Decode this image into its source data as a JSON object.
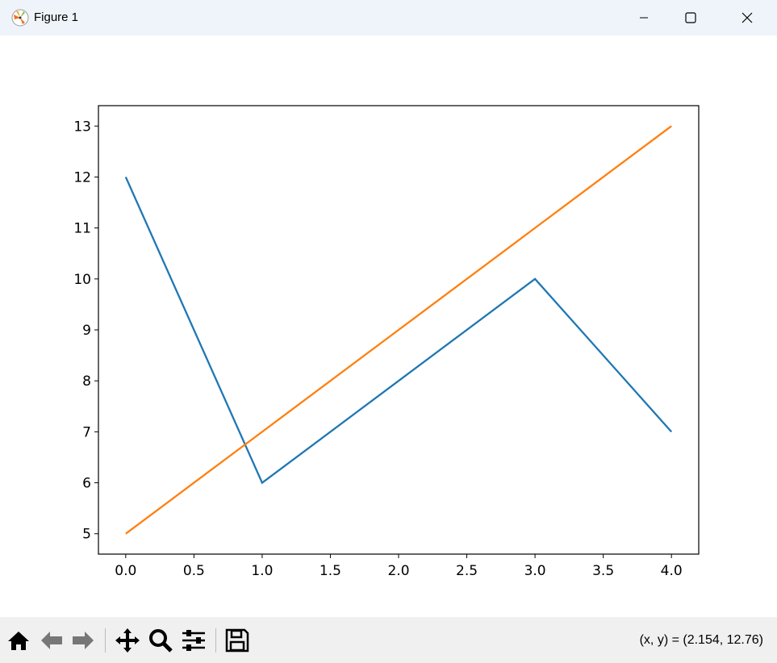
{
  "window": {
    "title": "Figure 1",
    "icon": "matplotlib-logo-icon",
    "controls": [
      "minimize-icon",
      "maximize-icon",
      "close-icon"
    ]
  },
  "toolbar": {
    "buttons": [
      "home-icon",
      "back-arrow-icon",
      "forward-arrow-icon",
      "pan-move-icon",
      "zoom-magnifier-icon",
      "configure-subplots-icon",
      "save-floppy-icon"
    ],
    "coords": "(x, y) = (2.154, 12.76)"
  },
  "chart_data": {
    "type": "line",
    "x": [
      0,
      1,
      2,
      3,
      4
    ],
    "series": [
      {
        "values": [
          12,
          6,
          8,
          10,
          7
        ],
        "color": "#1f77b4"
      },
      {
        "values": [
          5,
          7,
          9,
          11,
          13
        ],
        "color": "#ff7f0e"
      }
    ],
    "xlim": [
      -0.2,
      4.2
    ],
    "ylim": [
      4.6,
      13.4
    ],
    "xticks": [
      "0.0",
      "0.5",
      "1.0",
      "1.5",
      "2.0",
      "2.5",
      "3.0",
      "3.5",
      "4.0"
    ],
    "yticks": [
      "5",
      "6",
      "7",
      "8",
      "9",
      "10",
      "11",
      "12",
      "13"
    ],
    "grid": false
  }
}
